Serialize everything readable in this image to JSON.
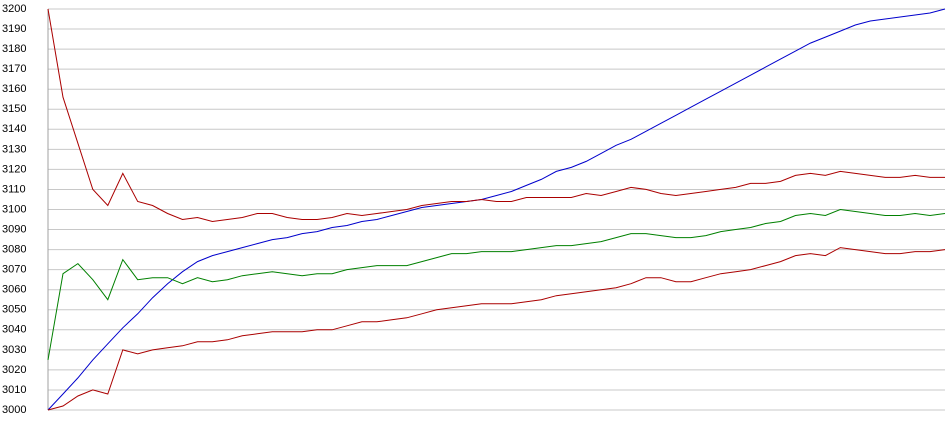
{
  "chart_data": {
    "type": "line",
    "ylim": [
      3000,
      3200
    ],
    "yticks": [
      3000,
      3010,
      3020,
      3030,
      3040,
      3050,
      3060,
      3070,
      3080,
      3090,
      3100,
      3110,
      3120,
      3130,
      3140,
      3150,
      3160,
      3170,
      3180,
      3190,
      3200
    ],
    "grid": true,
    "series": [
      {
        "color": "#0000cc",
        "values": [
          3000,
          3008,
          3016,
          3025,
          3033,
          3041,
          3048,
          3056,
          3063,
          3069,
          3074,
          3077,
          3079,
          3081,
          3083,
          3085,
          3086,
          3088,
          3089,
          3091,
          3092,
          3094,
          3095,
          3097,
          3099,
          3101,
          3102,
          3103,
          3104,
          3105,
          3107,
          3109,
          3112,
          3115,
          3119,
          3121,
          3124,
          3128,
          3132,
          3135,
          3139,
          3143,
          3147,
          3151,
          3155,
          3159,
          3163,
          3167,
          3171,
          3175,
          3179,
          3183,
          3186,
          3189,
          3192,
          3194,
          3195,
          3196,
          3197,
          3198,
          3200
        ]
      },
      {
        "color": "#aa0000",
        "values": [
          3200,
          3156,
          3133,
          3110,
          3102,
          3118,
          3104,
          3102,
          3098,
          3095,
          3096,
          3094,
          3095,
          3096,
          3098,
          3098,
          3096,
          3095,
          3095,
          3096,
          3098,
          3097,
          3098,
          3099,
          3100,
          3102,
          3103,
          3104,
          3104,
          3105,
          3104,
          3104,
          3106,
          3106,
          3106,
          3106,
          3108,
          3107,
          3109,
          3111,
          3110,
          3108,
          3107,
          3108,
          3109,
          3110,
          3111,
          3113,
          3113,
          3114,
          3117,
          3118,
          3117,
          3119,
          3118,
          3117,
          3116,
          3116,
          3117,
          3116,
          3116
        ]
      },
      {
        "color": "#008000",
        "values": [
          3025,
          3068,
          3073,
          3065,
          3055,
          3075,
          3065,
          3066,
          3066,
          3063,
          3066,
          3064,
          3065,
          3067,
          3068,
          3069,
          3068,
          3067,
          3068,
          3068,
          3070,
          3071,
          3072,
          3072,
          3072,
          3074,
          3076,
          3078,
          3078,
          3079,
          3079,
          3079,
          3080,
          3081,
          3082,
          3082,
          3083,
          3084,
          3086,
          3088,
          3088,
          3087,
          3086,
          3086,
          3087,
          3089,
          3090,
          3091,
          3093,
          3094,
          3097,
          3098,
          3097,
          3100,
          3099,
          3098,
          3097,
          3097,
          3098,
          3097,
          3098
        ]
      },
      {
        "color": "#aa0000",
        "values": [
          3000,
          3002,
          3007,
          3010,
          3008,
          3030,
          3028,
          3030,
          3031,
          3032,
          3034,
          3034,
          3035,
          3037,
          3038,
          3039,
          3039,
          3039,
          3040,
          3040,
          3042,
          3044,
          3044,
          3045,
          3046,
          3048,
          3050,
          3051,
          3052,
          3053,
          3053,
          3053,
          3054,
          3055,
          3057,
          3058,
          3059,
          3060,
          3061,
          3063,
          3066,
          3066,
          3064,
          3064,
          3066,
          3068,
          3069,
          3070,
          3072,
          3074,
          3077,
          3078,
          3077,
          3081,
          3080,
          3079,
          3078,
          3078,
          3079,
          3079,
          3080
        ]
      }
    ]
  }
}
